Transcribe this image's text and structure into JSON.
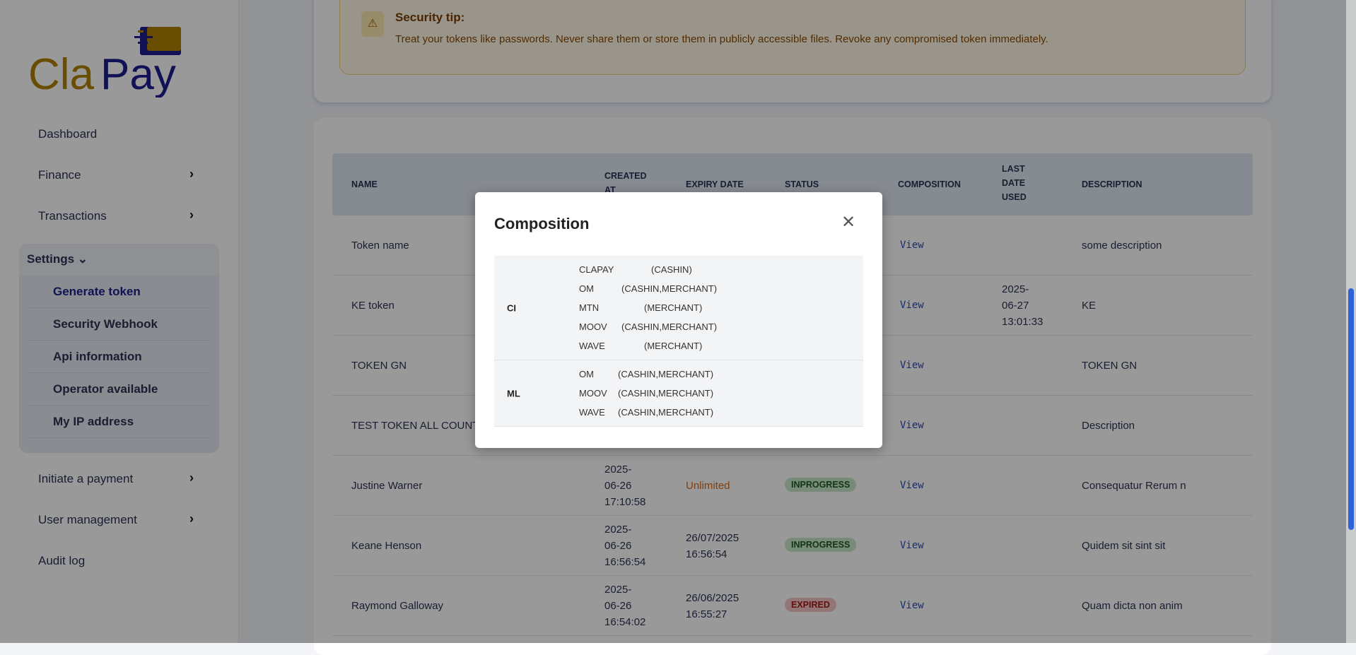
{
  "brand": {
    "part1": "Cla",
    "part2": "Pay",
    "color1": "#b08000",
    "color2": "#1d1d8f"
  },
  "sidebar": {
    "items": [
      {
        "label": "Dashboard"
      },
      {
        "label": "Finance"
      },
      {
        "label": "Transactions"
      }
    ],
    "settings": {
      "label": "Settings",
      "sub": [
        {
          "label": "Generate token",
          "active": true
        },
        {
          "label": "Security Webhook"
        },
        {
          "label": "Api information"
        },
        {
          "label": "Operator available"
        },
        {
          "label": "My IP address"
        }
      ]
    },
    "bottom": [
      {
        "label": "Initiate a payment"
      },
      {
        "label": "User management"
      },
      {
        "label": "Audit log"
      }
    ]
  },
  "tip": {
    "title": "Security tip:",
    "text": "Treat your tokens like passwords. Never share them or store them in publicly accessible files. Revoke any compromised token immediately.",
    "icon": "warning-icon"
  },
  "table": {
    "headers": {
      "name": "NAME",
      "created": "CREATED AT",
      "expiry": "EXPIRY DATE",
      "status": "STATUS",
      "composition": "COMPOSITION",
      "last": "LAST DATE USED",
      "description": "DESCRIPTION"
    },
    "rows": [
      {
        "name": "Token name",
        "created": "",
        "expiry": "",
        "status": "",
        "composition": "View",
        "last": "",
        "description": "some description"
      },
      {
        "name": "KE token",
        "created": "",
        "expiry": "",
        "status": "",
        "composition": "View",
        "last": "2025-06-27 13:01:33",
        "description": "KE"
      },
      {
        "name": "TOKEN GN",
        "created": "",
        "expiry": "",
        "status": "",
        "composition": "View",
        "last": "",
        "description": "TOKEN GN"
      },
      {
        "name": "TEST TOKEN ALL COUNT",
        "created": "",
        "expiry": "",
        "status": "",
        "composition": "View",
        "last": "",
        "description": "Description"
      },
      {
        "name": "Justine Warner",
        "created": "2025-06-26 17:10:58",
        "expiry": "Unlimited",
        "status": "INPROGRESS",
        "composition": "View",
        "last": "",
        "description": "Consequatur Rerum n"
      },
      {
        "name": "Keane Henson",
        "created": "2025-06-26 16:56:54",
        "expiry": "26/07/2025 16:56:54",
        "status": "INPROGRESS",
        "composition": "View",
        "last": "",
        "description": "Quidem sit sint sit"
      },
      {
        "name": "Raymond Galloway",
        "created": "2025-06-26 16:54:02",
        "expiry": "26/06/2025 16:55:27",
        "status": "EXPIRED",
        "composition": "View",
        "last": "",
        "description": "Quam dicta non anim"
      }
    ]
  },
  "modal": {
    "title": "Composition",
    "close_icon": "close-icon",
    "groups": [
      {
        "code": "CI",
        "operators": [
          {
            "name": "CLAPAY",
            "types": "(CASHIN)"
          },
          {
            "name": "OM",
            "types": "(CASHIN,MERCHANT)"
          },
          {
            "name": "MTN",
            "types": "(MERCHANT)"
          },
          {
            "name": "MOOV",
            "types": "(CASHIN,MERCHANT)"
          },
          {
            "name": "WAVE",
            "types": "(MERCHANT)"
          }
        ]
      },
      {
        "code": "ML",
        "operators": [
          {
            "name": "OM",
            "types": "(CASHIN,MERCHANT)"
          },
          {
            "name": "MOOV",
            "types": "(CASHIN,MERCHANT)"
          },
          {
            "name": "WAVE",
            "types": "(CASHIN,MERCHANT)"
          }
        ]
      }
    ]
  }
}
